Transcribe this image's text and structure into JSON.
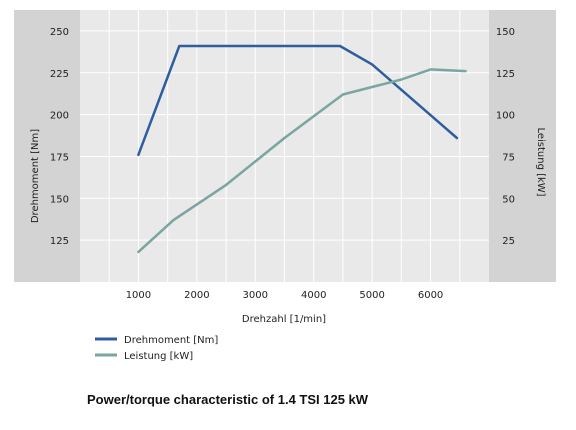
{
  "caption": "Power/torque characteristic of 1.4 TSI 125 kW",
  "chart_data": {
    "type": "line",
    "xlabel": "Drehzahl  [1/min]",
    "ylabel_left": "Drehmoment [Nm]",
    "ylabel_right": "Leistung [kW]",
    "xlim": [
      0,
      7000
    ],
    "xticks": [
      1000,
      2000,
      3000,
      4000,
      5000,
      6000
    ],
    "ylim_left": [
      100,
      262.5
    ],
    "yticks_left": [
      125,
      150,
      175,
      200,
      225,
      250
    ],
    "ylim_right": [
      0,
      162.5
    ],
    "yticks_right": [
      25,
      50,
      75,
      100,
      125,
      150
    ],
    "grid": true,
    "legend_position": "bottom-left",
    "series": [
      {
        "name": "Drehmoment [Nm]",
        "axis": "left",
        "color": "#2f5e9e",
        "x": [
          1000,
          1700,
          4450,
          5000,
          6450
        ],
        "y": [
          176,
          241,
          241,
          230,
          186
        ]
      },
      {
        "name": "Leistung [kW]",
        "axis": "right",
        "color": "#7aa5a0",
        "x": [
          1000,
          1600,
          2500,
          3500,
          4500,
          5500,
          6000,
          6600
        ],
        "y": [
          18,
          37,
          58,
          86,
          112,
          121,
          127,
          126
        ]
      }
    ]
  }
}
